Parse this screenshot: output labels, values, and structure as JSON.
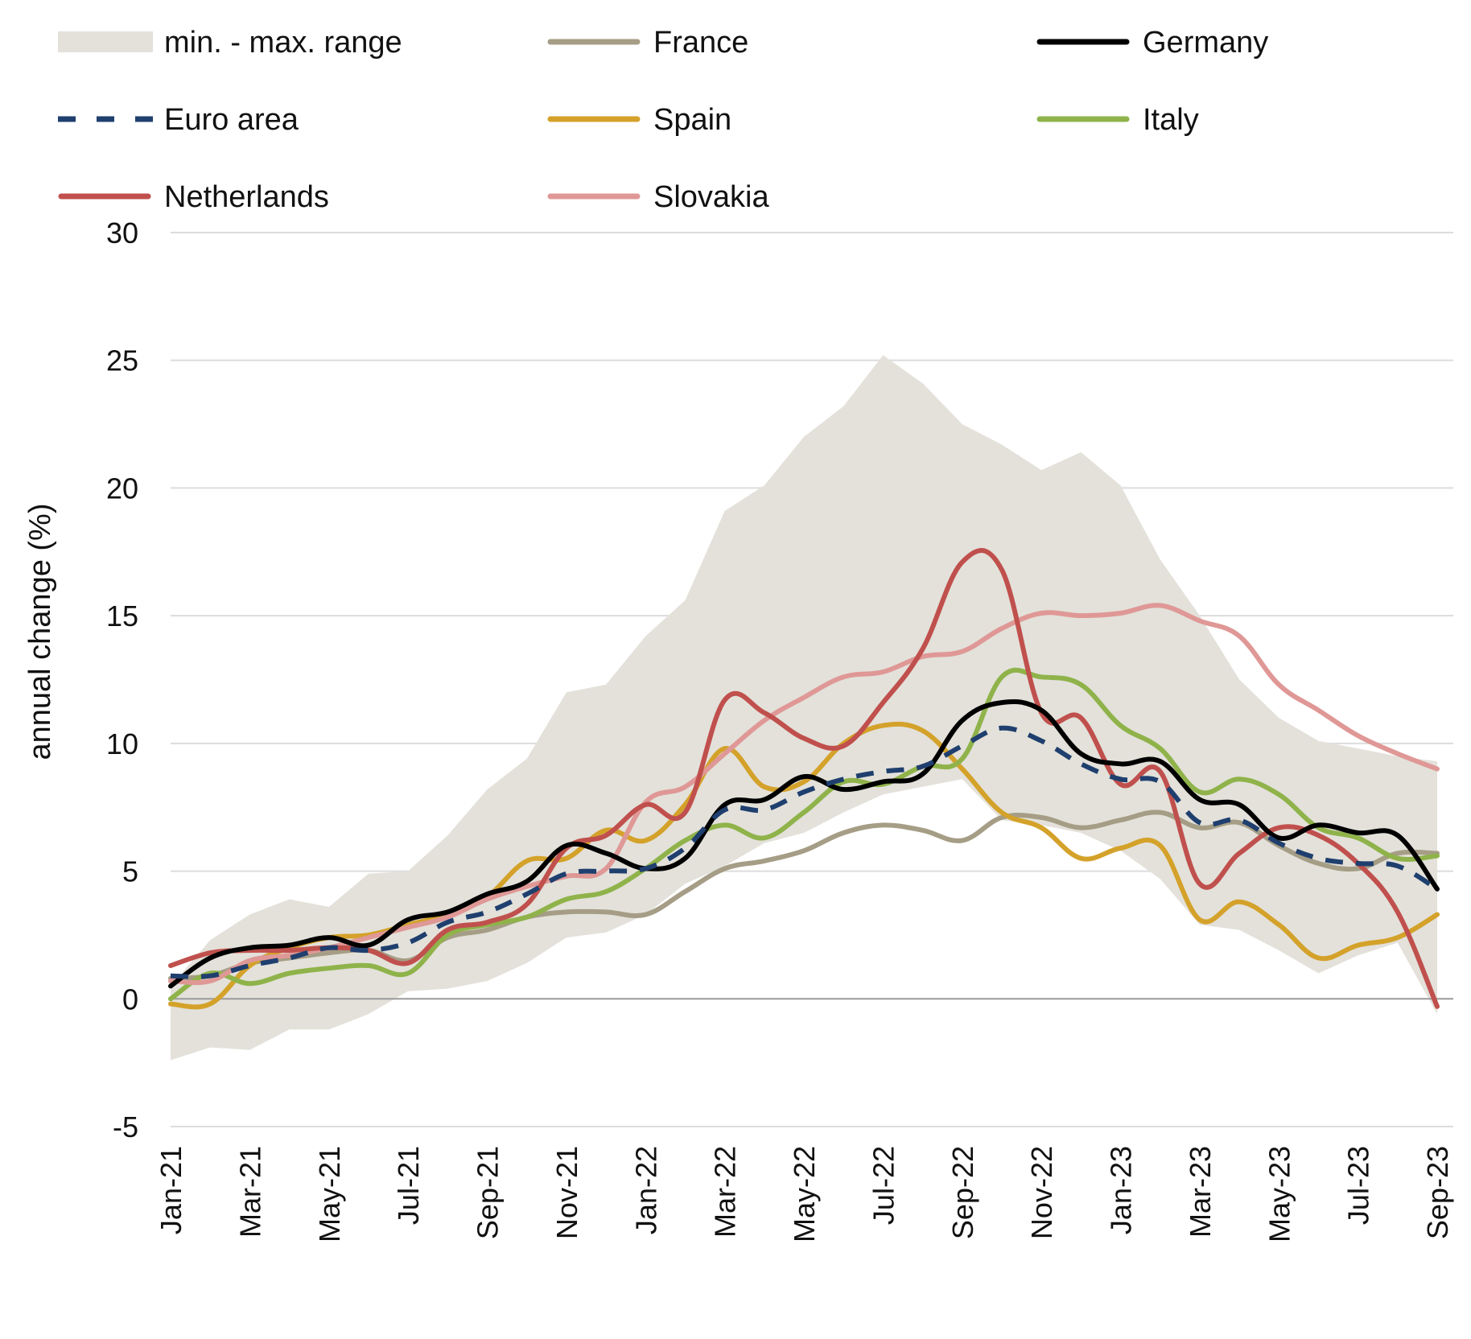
{
  "chart_data": {
    "type": "line",
    "ylabel": "annual change (%)",
    "ylim": [
      -5,
      30
    ],
    "yticks": [
      "-5",
      "0",
      "5",
      "10",
      "15",
      "20",
      "25",
      "30"
    ],
    "grid": true,
    "legend_position": "top",
    "x": [
      "Jan-21",
      "Feb-21",
      "Mar-21",
      "Apr-21",
      "May-21",
      "Jun-21",
      "Jul-21",
      "Aug-21",
      "Sep-21",
      "Oct-21",
      "Nov-21",
      "Dec-21",
      "Jan-22",
      "Feb-22",
      "Mar-22",
      "Apr-22",
      "May-22",
      "Jun-22",
      "Jul-22",
      "Aug-22",
      "Sep-22",
      "Oct-22",
      "Nov-22",
      "Dec-22",
      "Jan-23",
      "Feb-23",
      "Mar-23",
      "Apr-23",
      "May-23",
      "Jun-23",
      "Jul-23",
      "Aug-23",
      "Sep-23"
    ],
    "xtick_labels": [
      "Jan-21",
      "Mar-21",
      "May-21",
      "Jul-21",
      "Sep-21",
      "Nov-21",
      "Jan-22",
      "Mar-22",
      "May-22",
      "Jul-22",
      "Sep-22",
      "Nov-22",
      "Jan-23",
      "Mar-23",
      "May-23",
      "Jul-23",
      "Sep-23"
    ],
    "range": {
      "name": "min. - max. range",
      "color": "#e3e1da",
      "min": [
        -2.4,
        -1.9,
        -2.0,
        -1.2,
        -1.2,
        -0.6,
        0.3,
        0.4,
        0.7,
        1.4,
        2.4,
        2.6,
        3.3,
        4.5,
        5.2,
        6.1,
        6.5,
        7.3,
        8.0,
        8.3,
        8.6,
        7.0,
        6.8,
        6.5,
        5.8,
        4.7,
        2.9,
        2.7,
        1.9,
        1.0,
        1.7,
        2.2,
        -0.6
      ],
      "max": [
        0.5,
        2.3,
        3.3,
        3.9,
        3.6,
        4.9,
        5.0,
        6.4,
        8.2,
        9.4,
        12.0,
        12.3,
        14.2,
        15.6,
        19.1,
        20.1,
        22.0,
        23.2,
        25.2,
        24.1,
        22.5,
        21.7,
        20.7,
        21.4,
        20.1,
        17.2,
        15.0,
        12.5,
        11.0,
        10.1,
        9.8,
        9.5,
        9.3
      ]
    },
    "series": [
      {
        "name": "France",
        "color": "#a59d85",
        "width": 6,
        "dash": "none",
        "values": [
          0.8,
          0.9,
          1.4,
          1.6,
          1.8,
          1.9,
          1.5,
          2.4,
          2.7,
          3.2,
          3.4,
          3.4,
          3.3,
          4.2,
          5.1,
          5.4,
          5.8,
          6.5,
          6.8,
          6.6,
          6.2,
          7.1,
          7.1,
          6.7,
          7.0,
          7.3,
          6.7,
          6.9,
          6.0,
          5.3,
          5.1,
          5.7,
          5.7
        ]
      },
      {
        "name": "Germany",
        "color": "#000000",
        "width": 6,
        "dash": "none",
        "values": [
          0.5,
          1.6,
          2.0,
          2.1,
          2.4,
          2.1,
          3.1,
          3.4,
          4.1,
          4.6,
          6.0,
          5.7,
          5.1,
          5.5,
          7.6,
          7.8,
          8.7,
          8.2,
          8.5,
          8.8,
          10.9,
          11.6,
          11.3,
          9.6,
          9.2,
          9.3,
          7.8,
          7.6,
          6.3,
          6.8,
          6.5,
          6.4,
          4.3
        ]
      },
      {
        "name": "Euro area",
        "color": "#1f3f6e",
        "width": 6,
        "dash": "22,16",
        "values": [
          0.9,
          0.9,
          1.3,
          1.6,
          2.0,
          1.9,
          2.2,
          3.0,
          3.4,
          4.1,
          4.9,
          5.0,
          5.1,
          5.9,
          7.4,
          7.4,
          8.1,
          8.6,
          8.9,
          9.1,
          9.9,
          10.6,
          10.1,
          9.2,
          8.6,
          8.5,
          6.9,
          7.0,
          6.1,
          5.5,
          5.3,
          5.2,
          4.3
        ]
      },
      {
        "name": "Spain",
        "color": "#d4a22a",
        "width": 6,
        "dash": "none",
        "values": [
          -0.2,
          -0.2,
          1.3,
          2.0,
          2.4,
          2.5,
          2.9,
          3.3,
          4.0,
          5.4,
          5.5,
          6.6,
          6.2,
          7.6,
          9.8,
          8.3,
          8.5,
          10.0,
          10.7,
          10.5,
          9.0,
          7.3,
          6.7,
          5.5,
          5.9,
          6.0,
          3.1,
          3.8,
          2.9,
          1.6,
          2.1,
          2.4,
          3.3
        ]
      },
      {
        "name": "Italy",
        "color": "#8fb34a",
        "width": 6,
        "dash": "none",
        "values": [
          0.0,
          1.0,
          0.6,
          1.0,
          1.2,
          1.3,
          1.0,
          2.5,
          2.9,
          3.2,
          3.9,
          4.2,
          5.1,
          6.2,
          6.8,
          6.3,
          7.3,
          8.5,
          8.4,
          9.1,
          9.4,
          12.6,
          12.6,
          12.3,
          10.7,
          9.8,
          8.1,
          8.6,
          8.0,
          6.7,
          6.3,
          5.5,
          5.6
        ]
      },
      {
        "name": "Netherlands",
        "color": "#c0504d",
        "width": 6,
        "dash": "none",
        "values": [
          1.3,
          1.8,
          1.9,
          1.9,
          2.0,
          1.9,
          1.4,
          2.7,
          3.0,
          3.7,
          5.9,
          6.4,
          7.6,
          7.3,
          11.7,
          11.2,
          10.2,
          9.9,
          11.6,
          13.7,
          17.1,
          16.8,
          11.2,
          11.0,
          8.4,
          8.9,
          4.5,
          5.7,
          6.7,
          6.4,
          5.3,
          3.4,
          -0.3
        ]
      },
      {
        "name": "Slovakia",
        "color": "#df9896",
        "width": 6,
        "dash": "none",
        "values": [
          0.7,
          0.7,
          1.5,
          1.7,
          2.0,
          2.4,
          2.8,
          3.2,
          3.9,
          4.4,
          4.8,
          5.1,
          7.7,
          8.3,
          9.6,
          10.9,
          11.8,
          12.6,
          12.8,
          13.4,
          13.6,
          14.5,
          15.1,
          15.0,
          15.1,
          15.4,
          14.8,
          14.2,
          12.3,
          11.3,
          10.3,
          9.6,
          9.0
        ]
      }
    ],
    "legend_order": [
      "range",
      "France",
      "Germany",
      "Euro area",
      "Spain",
      "Italy",
      "Netherlands",
      "Slovakia"
    ]
  }
}
